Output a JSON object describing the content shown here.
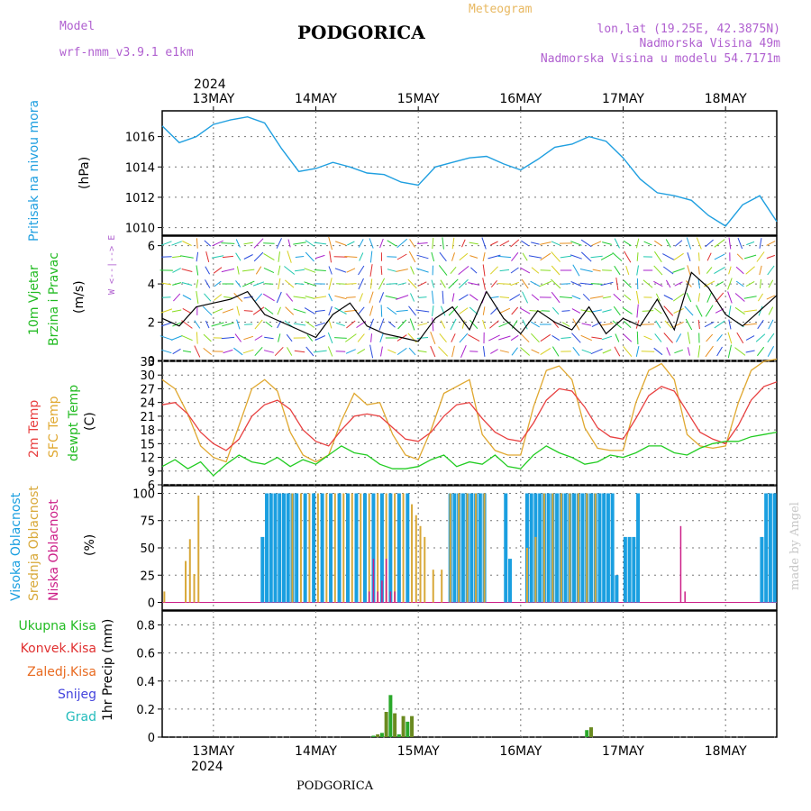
{
  "header": {
    "model_label": "Model",
    "model_name": "wrf-nmm_v3.9.1 e1km",
    "title": "PODGORICA",
    "meteogram": "Meteogram",
    "lonlat": "lon,lat (19.25E, 42.3875N)",
    "elevation": "Nadmorska Visina 49m",
    "model_elevation": "Nadmorska Visina u modelu 54.7171m",
    "year_top": "2024",
    "year_bottom": "2024",
    "footer_title": "PODGORICA",
    "watermark": "made by Angel"
  },
  "dates": [
    "13MAY",
    "14MAY",
    "15MAY",
    "16MAY",
    "17MAY",
    "18MAY"
  ],
  "colors": {
    "pressure": "#1f9fe0",
    "wind_speed": "#000000",
    "wind_gust": "#e03030",
    "temp2m": "#e84040",
    "sfc_temp": "#e0a830",
    "dewpt": "#22cc22",
    "high_cloud": "#1a9fe0",
    "mid_cloud": "#d8a838",
    "low_cloud": "#cc1f88",
    "total_precip": "#2aa82a",
    "conv_precip": "#e03030",
    "frozen_precip": "#e86a20",
    "snow": "#4444dd",
    "grad": "#22bbbb"
  },
  "panels": {
    "pressure": {
      "ylabel_1": "Pritisak na nivou mora",
      "ylabel_2": "(hPa)",
      "ticks": [
        "1010",
        "1012",
        "1014",
        "1016"
      ]
    },
    "wind": {
      "ylabel_1": "10m Vjetar",
      "ylabel_2": "Brzina i Pravac",
      "ylabel_3": "(m/s)",
      "compass": "W <--|--> E",
      "ticks": [
        "0",
        "2",
        "4",
        "6"
      ]
    },
    "temp": {
      "ylabel_1": "2m Temp",
      "ylabel_2": "SFC Temp",
      "ylabel_3": "dewpt Temp",
      "ylabel_4": "(C)",
      "ticks": [
        "6",
        "9",
        "12",
        "15",
        "18",
        "21",
        "24",
        "27",
        "30",
        "33"
      ]
    },
    "cloud": {
      "ylabel_1": "Visoka Oblacnost",
      "ylabel_2": "Srednja Oblacnost",
      "ylabel_3": "Niska Oblacnost",
      "ylabel_4": "(%)",
      "ticks": [
        "0",
        "25",
        "50",
        "75",
        "100"
      ]
    },
    "precip": {
      "legend": [
        "Ukupna Kisa",
        "Konvek.Kisa",
        "Zaledj.Kisa",
        "Snijeg",
        "Grad"
      ],
      "ylabel": "1hr Precip (mm)",
      "ticks": [
        "0",
        "0.2",
        "0.4",
        "0.6",
        "0.8"
      ]
    }
  },
  "chart_data": [
    {
      "type": "line",
      "title": "Pritisak na nivou mora (hPa)",
      "x_unit": "hours from start (00h = 12 May 12UTC approx.)",
      "series": [
        {
          "name": "Pritisak na nivou mora",
          "x": [
            0,
            4,
            8,
            12,
            16,
            20,
            24,
            28,
            32,
            36,
            40,
            44,
            48,
            52,
            56,
            60,
            64,
            68,
            72,
            76,
            80,
            84,
            88,
            92,
            96,
            100,
            104,
            108,
            112,
            116,
            120,
            124,
            128,
            132,
            136,
            140,
            144
          ],
          "values": [
            1016.7,
            1015.6,
            1016.0,
            1016.8,
            1017.1,
            1017.3,
            1016.9,
            1015.2,
            1013.7,
            1013.9,
            1014.3,
            1014.0,
            1013.6,
            1013.5,
            1013.0,
            1012.8,
            1014.0,
            1014.3,
            1014.6,
            1014.7,
            1014.2,
            1013.8,
            1014.5,
            1015.3,
            1015.5,
            1016.0,
            1015.7,
            1014.6,
            1013.2,
            1012.3,
            1012.1,
            1011.8,
            1010.8,
            1010.1,
            1011.5,
            1012.1,
            1010.4
          ]
        }
      ],
      "ylim": [
        1009.5,
        1017.7
      ]
    },
    {
      "type": "line",
      "title": "10m Vjetar Brzina i Pravac (m/s)",
      "series": [
        {
          "name": "Brzina",
          "x": [
            0,
            4,
            8,
            12,
            16,
            20,
            24,
            28,
            32,
            36,
            40,
            44,
            48,
            52,
            56,
            60,
            64,
            68,
            72,
            76,
            80,
            84,
            88,
            92,
            96,
            100,
            104,
            108,
            112,
            116,
            120,
            124,
            128,
            132,
            136,
            140,
            144
          ],
          "values": [
            2.2,
            1.8,
            2.8,
            3.0,
            3.2,
            3.6,
            2.4,
            2.0,
            1.6,
            1.2,
            2.4,
            3.0,
            1.8,
            1.4,
            1.2,
            1.0,
            2.2,
            2.8,
            1.6,
            3.6,
            2.2,
            1.4,
            2.6,
            2.0,
            1.6,
            2.8,
            1.4,
            2.2,
            1.8,
            3.2,
            1.6,
            4.6,
            3.8,
            2.4,
            1.8,
            2.6,
            3.4
          ]
        }
      ],
      "ylim": [
        0,
        6.5
      ]
    },
    {
      "type": "line",
      "title": "2m Temp / SFC Temp / dewpt Temp (C)",
      "series": [
        {
          "name": "2m Temp",
          "x": [
            0,
            3,
            6,
            9,
            12,
            15,
            18,
            21,
            24,
            27,
            30,
            33,
            36,
            39,
            42,
            45,
            48,
            51,
            54,
            57,
            60,
            63,
            66,
            69,
            72,
            75,
            78,
            81,
            84,
            87,
            90,
            93,
            96,
            99,
            102,
            105,
            108,
            111,
            114,
            117,
            120,
            123,
            126,
            129,
            132,
            135,
            138,
            141,
            144
          ],
          "values": [
            23.5,
            24.0,
            21.5,
            17.5,
            15.0,
            13.5,
            16.0,
            21.0,
            23.5,
            24.5,
            22.5,
            18.0,
            15.5,
            14.5,
            18.0,
            21.0,
            21.5,
            21.0,
            18.5,
            16.0,
            15.5,
            17.5,
            21.0,
            23.5,
            24.0,
            20.5,
            17.5,
            16.0,
            15.5,
            19.5,
            24.5,
            27.0,
            26.5,
            23.0,
            18.5,
            16.5,
            16.0,
            20.5,
            25.5,
            27.5,
            26.5,
            22.0,
            17.5,
            16.0,
            15.0,
            19.0,
            24.5,
            27.5,
            28.5
          ]
        },
        {
          "name": "SFC Temp",
          "x": [
            0,
            3,
            6,
            9,
            12,
            15,
            18,
            21,
            24,
            27,
            30,
            33,
            36,
            39,
            42,
            45,
            48,
            51,
            54,
            57,
            60,
            63,
            66,
            69,
            72,
            75,
            78,
            81,
            84,
            87,
            90,
            93,
            96,
            99,
            102,
            105,
            108,
            111,
            114,
            117,
            120,
            123,
            126,
            129,
            132,
            135,
            138,
            141,
            144
          ],
          "values": [
            29.0,
            27.0,
            21.5,
            14.5,
            12.0,
            11.0,
            19.0,
            27.0,
            29.0,
            26.5,
            17.5,
            12.5,
            11.0,
            12.5,
            20.0,
            26.0,
            23.5,
            24.0,
            17.0,
            12.5,
            11.5,
            18.0,
            26.0,
            27.5,
            29.0,
            17.0,
            13.5,
            12.5,
            12.5,
            23.0,
            31.0,
            32.0,
            29.0,
            18.5,
            14.0,
            13.5,
            13.5,
            24.0,
            31.0,
            32.5,
            29.0,
            17.0,
            14.5,
            14.0,
            14.5,
            24.0,
            31.0,
            33.0,
            33.5
          ]
        },
        {
          "name": "dewpt Temp",
          "x": [
            0,
            3,
            6,
            9,
            12,
            15,
            18,
            21,
            24,
            27,
            30,
            33,
            36,
            39,
            42,
            45,
            48,
            51,
            54,
            57,
            60,
            63,
            66,
            69,
            72,
            75,
            78,
            81,
            84,
            87,
            90,
            93,
            96,
            99,
            102,
            105,
            108,
            111,
            114,
            117,
            120,
            123,
            126,
            129,
            132,
            135,
            138,
            141,
            144
          ],
          "values": [
            10.0,
            11.5,
            9.5,
            11.0,
            8.0,
            10.5,
            12.5,
            11.0,
            10.5,
            12.0,
            10.0,
            11.5,
            10.5,
            12.5,
            14.5,
            13.0,
            12.5,
            10.5,
            9.5,
            9.5,
            10.0,
            11.5,
            12.5,
            10.0,
            11.0,
            10.5,
            12.5,
            10.0,
            9.5,
            12.5,
            14.5,
            13.0,
            12.0,
            10.5,
            11.0,
            12.5,
            12.0,
            13.0,
            14.5,
            14.5,
            13.0,
            12.5,
            14.0,
            15.0,
            15.5,
            15.5,
            16.5,
            17.0,
            17.5
          ]
        }
      ],
      "ylim": [
        6,
        33
      ]
    },
    {
      "type": "bar",
      "title": "Visoka / Srednja / Niska Oblacnost (%)",
      "series": [
        {
          "name": "Visoka Oblacnost",
          "x": [
            23.5,
            24.5,
            25.5,
            26.5,
            27.5,
            28.5,
            29.5,
            30.5,
            31.5,
            33.5,
            35.5,
            37.5,
            39.5,
            41.5,
            43.5,
            45.5,
            47.5,
            49.5,
            51.5,
            53.5,
            55.5,
            57.5,
            67.5,
            68.5,
            69.5,
            70.5,
            71.5,
            72.5,
            73.5,
            74.5,
            75.5,
            80.5,
            81.5,
            85.5,
            86.5,
            87.5,
            88.5,
            89.5,
            90.5,
            91.5,
            92.5,
            93.5,
            94.5,
            95.5,
            96.5,
            97.5,
            98.5,
            99.5,
            100.5,
            101.5,
            102.5,
            103.5,
            104.5,
            105.5,
            106.5,
            108.5,
            109.5,
            110.5,
            111.5,
            140.5,
            141.5,
            142.5,
            143.5
          ],
          "values": [
            60,
            100,
            100,
            100,
            100,
            100,
            100,
            100,
            100,
            100,
            100,
            100,
            100,
            100,
            100,
            100,
            100,
            100,
            100,
            100,
            100,
            100,
            100,
            100,
            100,
            100,
            100,
            100,
            100,
            100,
            100,
            100,
            40,
            100,
            100,
            100,
            100,
            100,
            100,
            100,
            100,
            100,
            100,
            100,
            100,
            100,
            100,
            100,
            100,
            100,
            100,
            100,
            100,
            100,
            25,
            60,
            60,
            60,
            100,
            60,
            100,
            100,
            100
          ]
        },
        {
          "name": "Srednja Oblacnost",
          "x": [
            0.5,
            5.5,
            6.5,
            7.5,
            8.5,
            30.5,
            32.5,
            34.5,
            36.5,
            38.5,
            40.5,
            42.5,
            44.5,
            46.5,
            48.5,
            50.5,
            52.5,
            54.5,
            56.5,
            58.5,
            59.5,
            60.5,
            61.5,
            63.5,
            65.5,
            67.5,
            69.5,
            71.5,
            73.5,
            75.5,
            85.5,
            87.5,
            89.5,
            91.5,
            93.5,
            95.5,
            97.5,
            99.5,
            101.5
          ],
          "values": [
            10,
            38,
            58,
            26,
            98,
            100,
            100,
            100,
            100,
            100,
            100,
            100,
            100,
            100,
            100,
            100,
            100,
            100,
            100,
            90,
            80,
            70,
            60,
            30,
            30,
            100,
            100,
            100,
            100,
            100,
            50,
            60,
            100,
            100,
            100,
            100,
            100,
            100,
            100
          ]
        },
        {
          "name": "Niska Oblacnost",
          "x": [
            48.5,
            49.5,
            50.5,
            51.5,
            52.5,
            53.5,
            54.5,
            121.5,
            122.5
          ],
          "values": [
            10,
            40,
            10,
            20,
            40,
            10,
            10,
            70,
            10
          ]
        }
      ],
      "ylim": [
        0,
        100
      ]
    },
    {
      "type": "bar",
      "title": "1hr Precip (mm)",
      "series": [
        {
          "name": "Ukupna Kisa",
          "x": [
            49.5,
            50.5,
            51.5,
            52.5,
            53.5,
            54.5,
            55.5,
            56.5,
            57.5,
            58.5,
            99.5,
            100.5
          ],
          "values": [
            0.01,
            0.02,
            0.03,
            0.18,
            0.3,
            0.17,
            0.02,
            0.15,
            0.11,
            0.15,
            0.05,
            0.07
          ]
        }
      ],
      "ylim": [
        0,
        0.9
      ]
    }
  ]
}
